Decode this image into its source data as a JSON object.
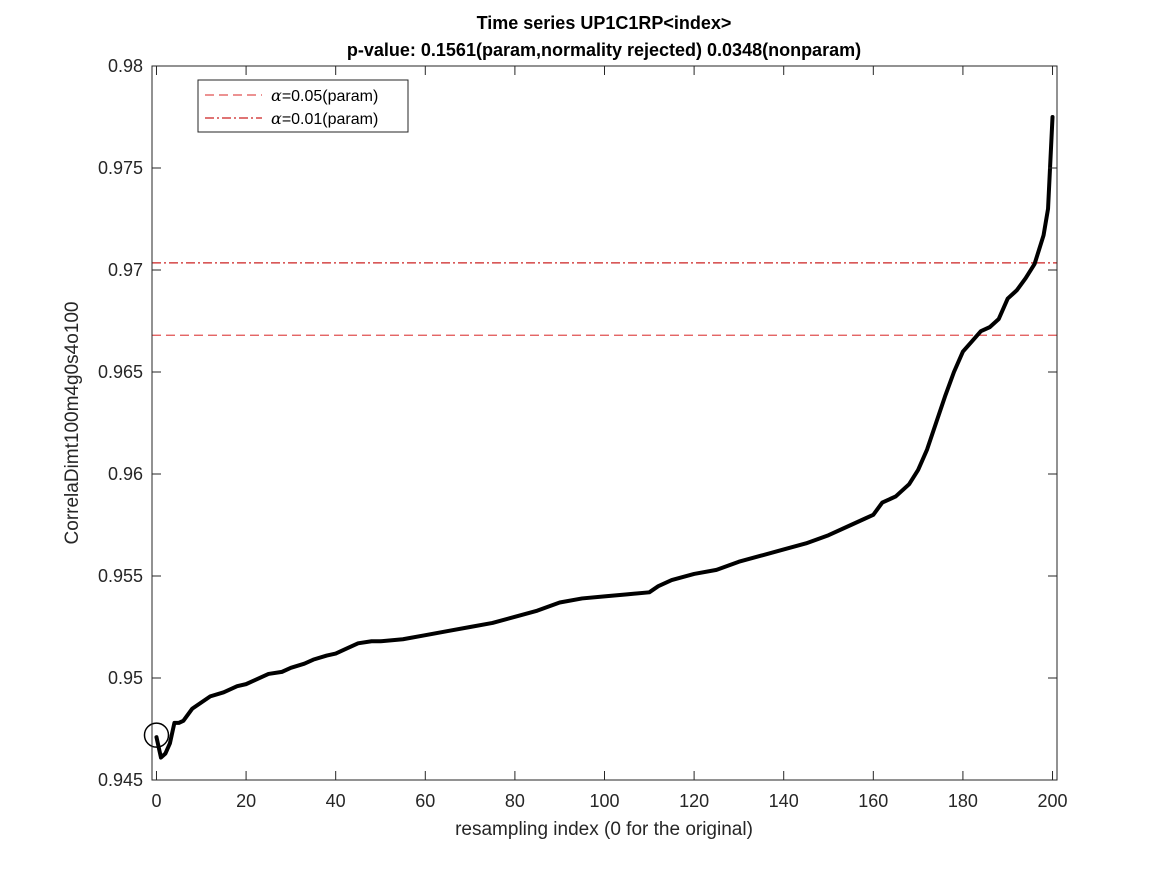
{
  "chart_data": {
    "type": "line",
    "title_line1": "Time series UP1C1RP<index>",
    "title_line2": "p-value: 0.1561(param,normality rejected) 0.0348(nonparam)",
    "xlabel": "resampling index (0 for the original)",
    "ylabel": "CorrelaDimt100m4g0s4o100",
    "xlim": [
      -1,
      201
    ],
    "ylim": [
      0.945,
      0.98
    ],
    "x_ticks": [
      "0",
      "20",
      "40",
      "60",
      "80",
      "100",
      "120",
      "140",
      "160",
      "180",
      "200"
    ],
    "y_ticks": [
      "0.945",
      "0.95",
      "0.955",
      "0.96",
      "0.965",
      "0.97",
      "0.975",
      "0.98"
    ],
    "legend_position": "top-left",
    "legend": [
      {
        "symbol": "α",
        "text": "=0.05(param)",
        "style": "dashed",
        "color": "#e05050"
      },
      {
        "symbol": "α",
        "text": "=0.01(param)",
        "style": "dashdot",
        "color": "#cc2222"
      }
    ],
    "thresholds": [
      {
        "label": "α=0.05(param)",
        "y": 0.9668
      },
      {
        "label": "α=0.01(param)",
        "y": 0.97035
      }
    ],
    "original_marker": {
      "x": 0,
      "y": 0.9472
    },
    "series": [
      {
        "color": "#000000",
        "x": [
          0,
          1,
          2,
          3,
          4,
          5,
          6,
          8,
          10,
          12,
          15,
          18,
          20,
          22,
          25,
          28,
          30,
          33,
          35,
          38,
          40,
          42,
          45,
          48,
          50,
          55,
          60,
          65,
          70,
          75,
          80,
          85,
          90,
          95,
          100,
          105,
          110,
          112,
          115,
          120,
          125,
          130,
          135,
          140,
          145,
          150,
          155,
          158,
          160,
          162,
          165,
          168,
          170,
          172,
          174,
          176,
          178,
          180,
          182,
          184,
          186,
          188,
          190,
          192,
          194,
          196,
          197,
          198,
          199,
          200
        ],
        "values": [
          0.9471,
          0.9461,
          0.9463,
          0.9468,
          0.9478,
          0.9478,
          0.9479,
          0.9485,
          0.9488,
          0.9491,
          0.9493,
          0.9496,
          0.9497,
          0.9499,
          0.9502,
          0.9503,
          0.9505,
          0.9507,
          0.9509,
          0.9511,
          0.9512,
          0.9514,
          0.9517,
          0.9518,
          0.9518,
          0.9519,
          0.9521,
          0.9523,
          0.9525,
          0.9527,
          0.953,
          0.9533,
          0.9537,
          0.9539,
          0.954,
          0.9541,
          0.9542,
          0.9545,
          0.9548,
          0.9551,
          0.9553,
          0.9557,
          0.956,
          0.9563,
          0.9566,
          0.957,
          0.9575,
          0.9578,
          0.958,
          0.9586,
          0.9589,
          0.9595,
          0.9602,
          0.9612,
          0.9625,
          0.9638,
          0.965,
          0.966,
          0.9665,
          0.967,
          0.9672,
          0.9676,
          0.9686,
          0.969,
          0.9696,
          0.9703,
          0.971,
          0.9717,
          0.973,
          0.9775
        ]
      }
    ]
  }
}
